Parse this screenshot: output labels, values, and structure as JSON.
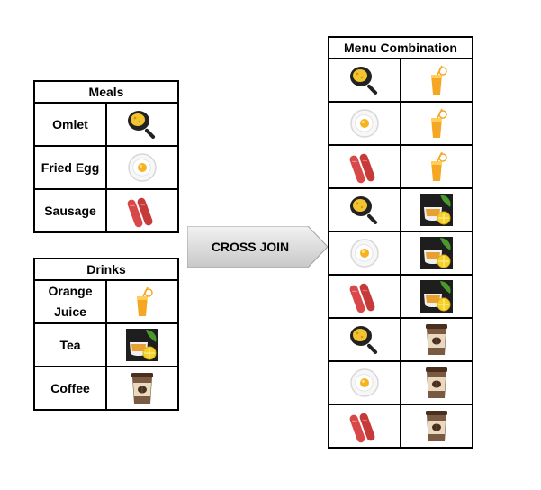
{
  "meals": {
    "header": "Meals",
    "rows": [
      {
        "label": "Omlet",
        "icon": "frying-pan-icon"
      },
      {
        "label": "Fried Egg",
        "icon": "fried-egg-icon"
      },
      {
        "label": "Sausage",
        "icon": "sausage-icon"
      }
    ]
  },
  "drinks": {
    "header": "Drinks",
    "rows": [
      {
        "label_line1": "Orange",
        "label_line2": "Juice",
        "icon": "orange-juice-icon"
      },
      {
        "label": "Tea",
        "icon": "lemon-tea-icon"
      },
      {
        "label": "Coffee",
        "icon": "coffee-cup-icon"
      }
    ]
  },
  "operation": {
    "label": "CROSS JOIN"
  },
  "combination": {
    "header": "Menu Combination",
    "rows": [
      [
        "frying-pan-icon",
        "orange-juice-icon"
      ],
      [
        "fried-egg-icon",
        "orange-juice-icon"
      ],
      [
        "sausage-icon",
        "orange-juice-icon"
      ],
      [
        "frying-pan-icon",
        "lemon-tea-icon"
      ],
      [
        "fried-egg-icon",
        "lemon-tea-icon"
      ],
      [
        "sausage-icon",
        "lemon-tea-icon"
      ],
      [
        "frying-pan-icon",
        "coffee-cup-icon"
      ],
      [
        "fried-egg-icon",
        "coffee-cup-icon"
      ],
      [
        "sausage-icon",
        "coffee-cup-icon"
      ]
    ]
  },
  "colors": {
    "arrow_light": "#f2f2f2",
    "arrow_dark": "#c8c8c8",
    "orange": "#f5a623",
    "sausage": "#d94848"
  }
}
